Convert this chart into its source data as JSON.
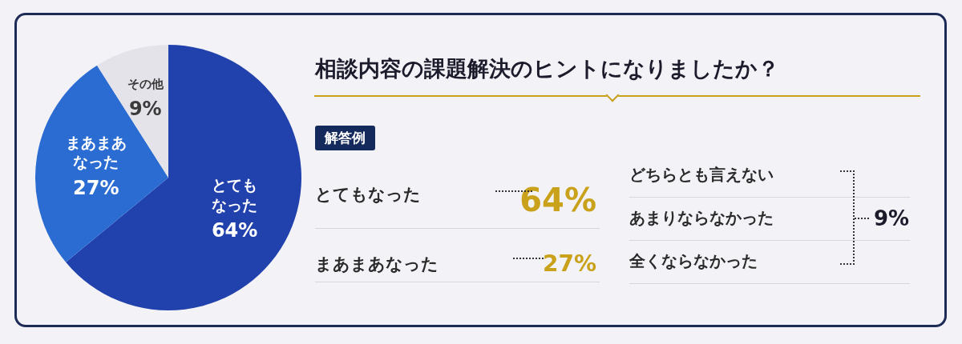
{
  "chart_data": {
    "type": "pie",
    "title": "相談内容の課題解決のヒントになりましたか？",
    "categories": [
      "とてもなった",
      "まあまあなった",
      "その他"
    ],
    "values": [
      64,
      27,
      9
    ],
    "value_labels": [
      "64%",
      "27%",
      "9%"
    ],
    "colors": [
      "#2142ad",
      "#2a6cd2",
      "#e4e3ea"
    ],
    "annotations": [
      "解答例",
      "どちらとも言えない",
      "あまりならなかった",
      "全くならなかった"
    ]
  }
}
